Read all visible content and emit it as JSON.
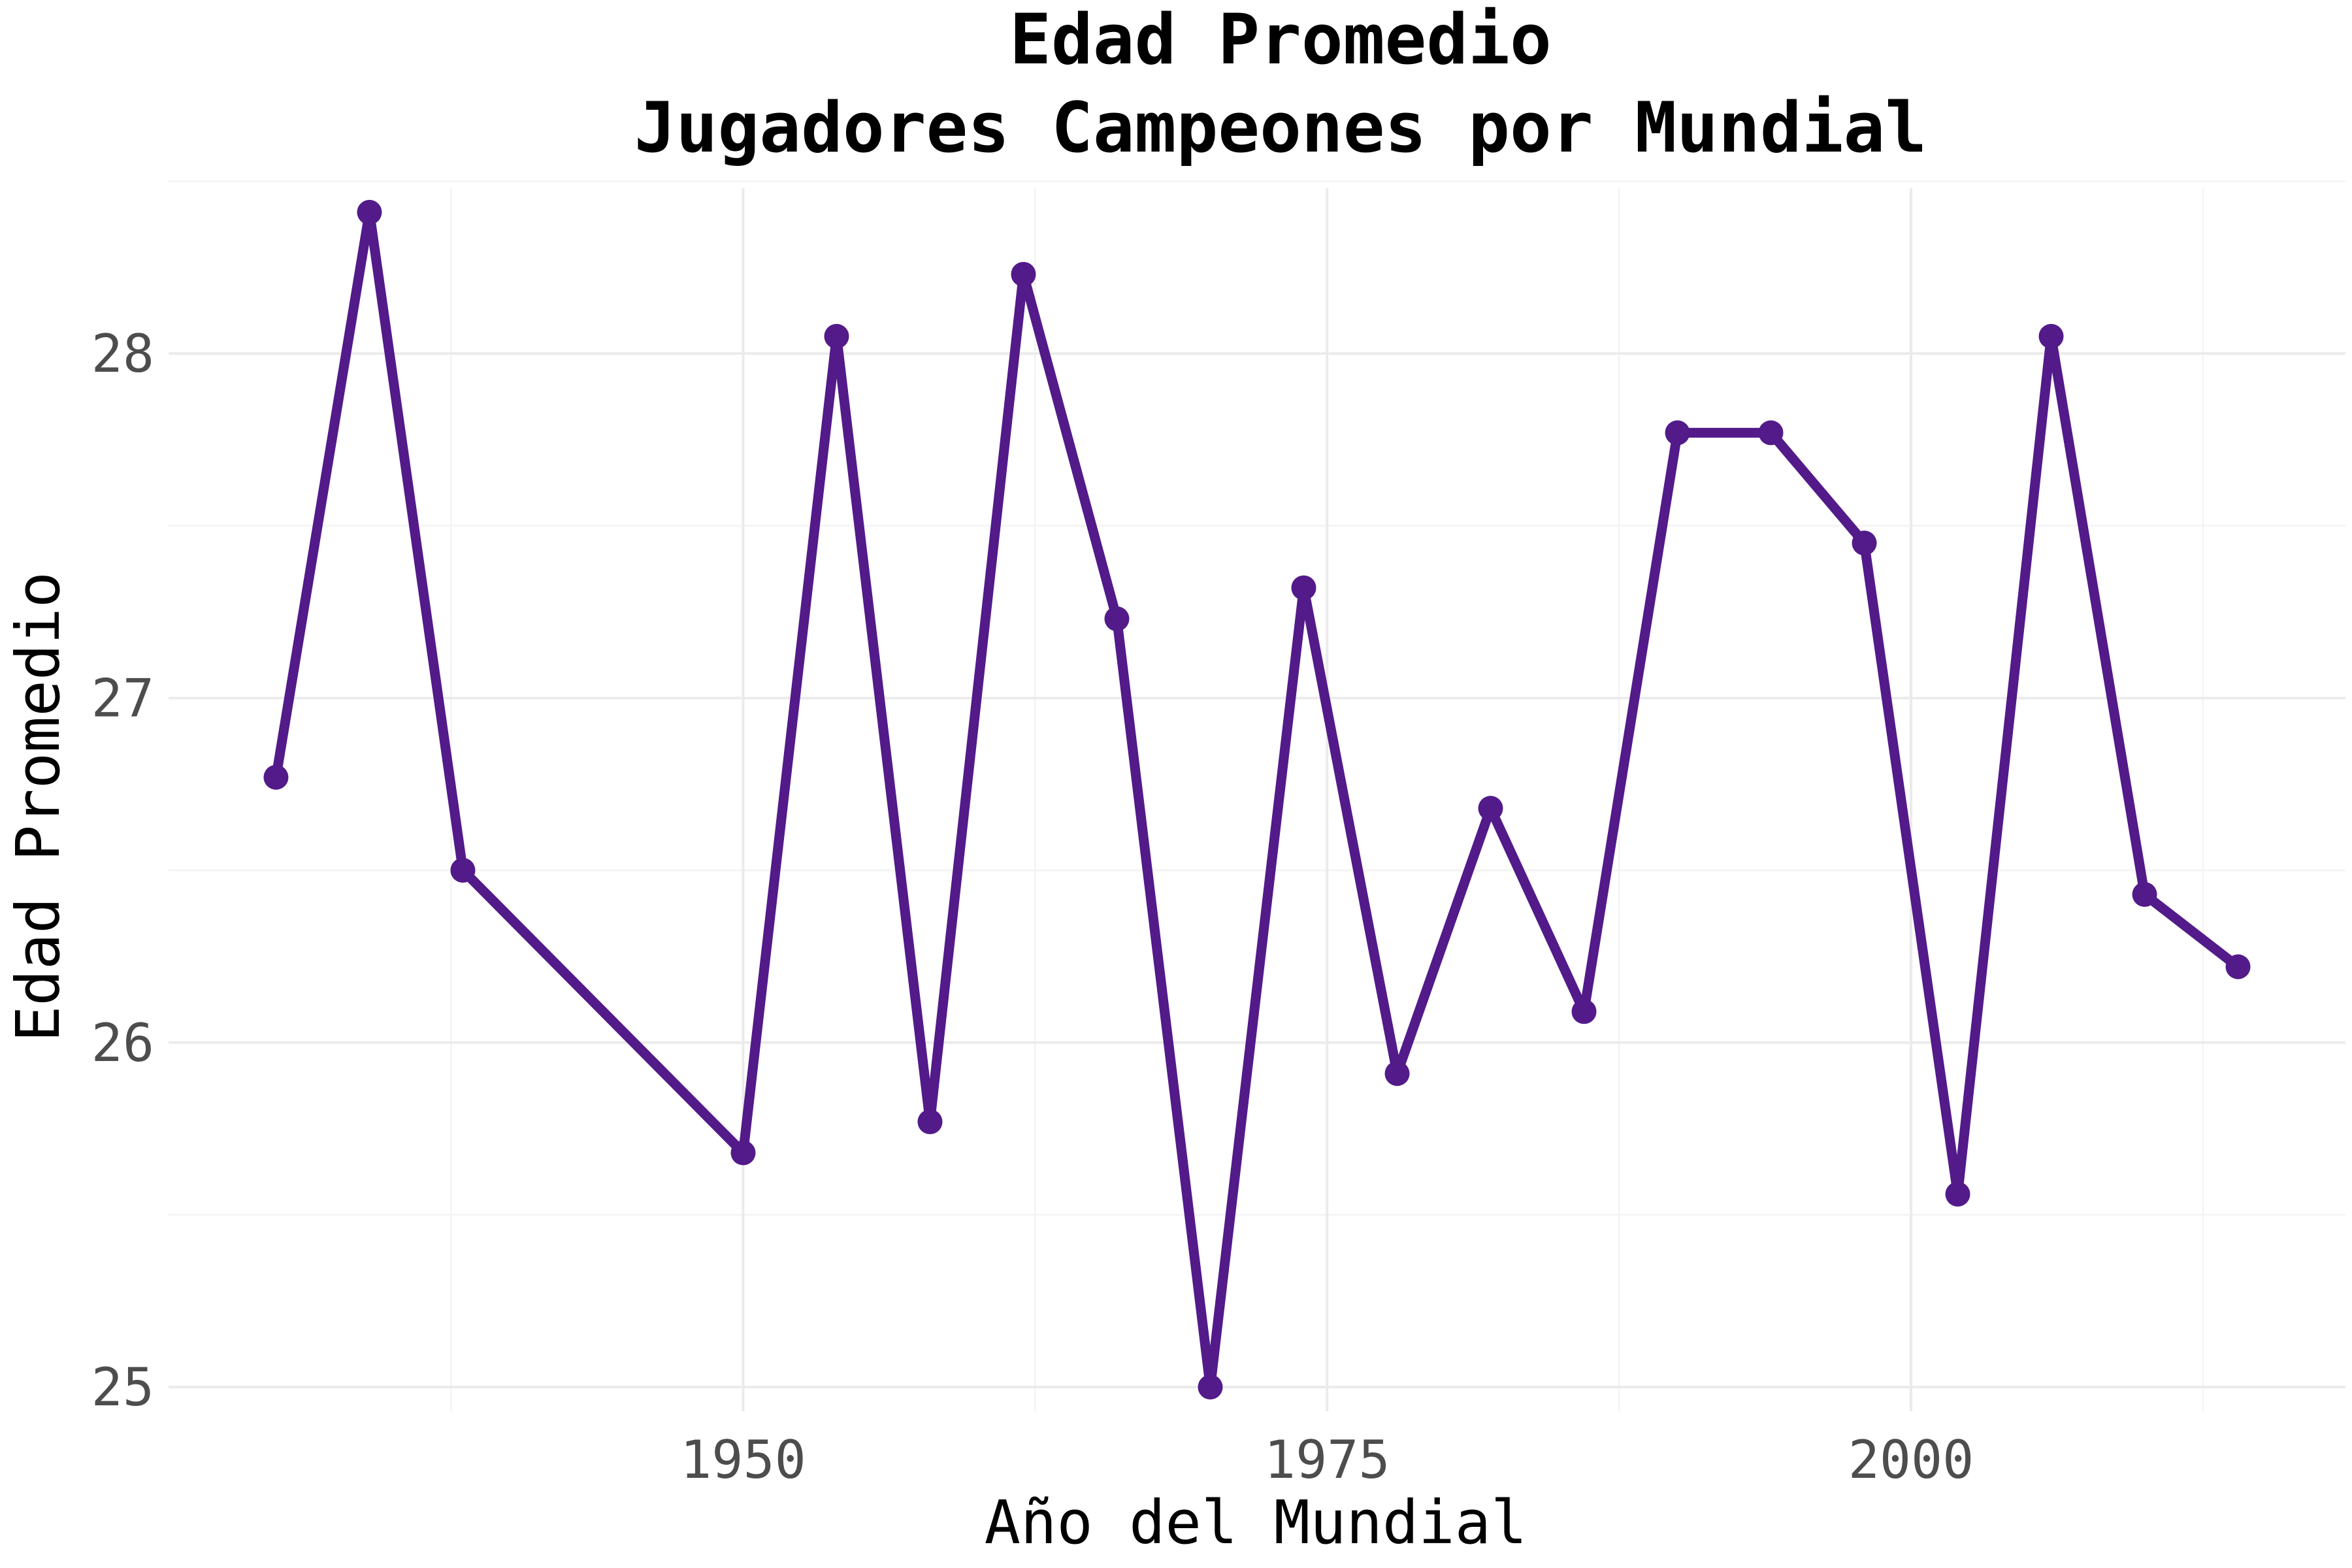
{
  "chart_data": {
    "type": "line",
    "title": [
      "Edad Promedio",
      "Jugadores Campeones por Mundial"
    ],
    "xlabel": "Año del Mundial",
    "ylabel": "Edad Promedio",
    "x": [
      1930,
      1934,
      1938,
      1950,
      1954,
      1958,
      1962,
      1966,
      1970,
      1974,
      1978,
      1982,
      1986,
      1990,
      1994,
      1998,
      2002,
      2006,
      2010,
      2014
    ],
    "y": [
      26.77,
      28.41,
      26.5,
      25.68,
      28.05,
      25.77,
      28.23,
      27.23,
      25.0,
      27.32,
      25.91,
      26.68,
      26.09,
      27.77,
      27.77,
      27.45,
      25.56,
      28.05,
      26.43,
      26.22
    ],
    "xlim": [
      1925.4,
      2018.6
    ],
    "ylim": [
      24.93,
      28.48
    ],
    "x_ticks": [
      1950,
      1975,
      2000
    ],
    "x_tick_labels": [
      "1950",
      "1975",
      "2000"
    ],
    "x_minor_ticks": [
      1937.5,
      1962.5,
      1987.5,
      2012.5
    ],
    "y_ticks": [
      25,
      26,
      27,
      28
    ],
    "y_tick_labels": [
      "25",
      "26",
      "27",
      "28"
    ],
    "y_minor_ticks": [
      25.5,
      26.5,
      27.5,
      28.5
    ],
    "grid": true,
    "legend": "none",
    "line_color": "#531a8a",
    "point_color": "#531a8a"
  }
}
